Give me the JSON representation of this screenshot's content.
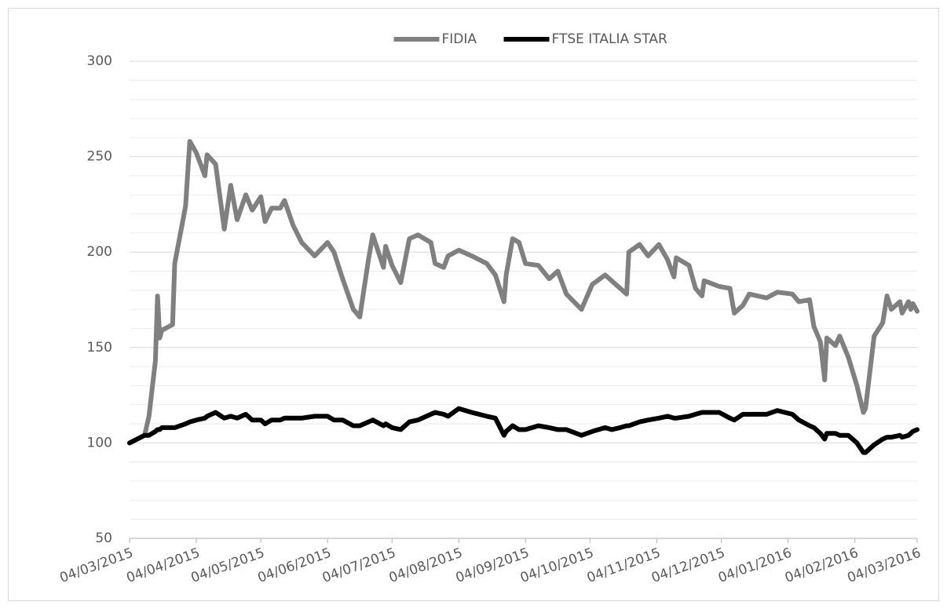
{
  "chart_data": {
    "type": "line",
    "x": [
      "04/03/2015",
      "11/03/2015",
      "13/03/2015",
      "16/03/2015",
      "17/03/2015",
      "18/03/2015",
      "19/03/2015",
      "24/03/2015",
      "25/03/2015",
      "30/03/2015",
      "01/04/2015",
      "04/04/2015",
      "08/04/2015",
      "09/04/2015",
      "13/04/2015",
      "17/04/2015",
      "20/04/2015",
      "23/04/2015",
      "27/04/2015",
      "30/04/2015",
      "04/05/2015",
      "06/05/2015",
      "09/05/2015",
      "13/05/2015",
      "15/05/2015",
      "19/05/2015",
      "23/05/2015",
      "29/05/2015",
      "04/06/2015",
      "07/06/2015",
      "11/06/2015",
      "16/06/2015",
      "19/06/2015",
      "23/06/2015",
      "25/06/2015",
      "30/06/2015",
      "01/07/2015",
      "04/07/2015",
      "08/07/2015",
      "12/07/2015",
      "16/07/2015",
      "22/07/2015",
      "24/07/2015",
      "28/07/2015",
      "30/07/2015",
      "04/08/2015",
      "10/08/2015",
      "17/08/2015",
      "21/08/2015",
      "25/08/2015",
      "26/08/2015",
      "29/08/2015",
      "01/09/2015",
      "04/09/2015",
      "10/09/2015",
      "15/09/2015",
      "19/09/2015",
      "23/09/2015",
      "30/09/2015",
      "05/10/2015",
      "11/10/2015",
      "14/10/2015",
      "18/10/2015",
      "21/10/2015",
      "22/10/2015",
      "27/10/2015",
      "31/10/2015",
      "05/11/2015",
      "09/11/2015",
      "12/11/2015",
      "13/11/2015",
      "19/11/2015",
      "22/11/2015",
      "25/11/2015",
      "26/11/2015",
      "03/12/2015",
      "08/12/2015",
      "10/12/2015",
      "14/12/2015",
      "17/12/2015",
      "25/12/2015",
      "30/12/2015",
      "06/01/2016",
      "09/01/2016",
      "14/01/2016",
      "16/01/2016",
      "19/01/2016",
      "21/01/2016",
      "22/01/2016",
      "26/01/2016",
      "28/01/2016",
      "01/02/2016",
      "05/02/2016",
      "08/02/2016",
      "09/02/2016",
      "13/02/2016",
      "17/02/2016",
      "19/02/2016",
      "21/02/2016",
      "25/02/2016",
      "26/02/2016",
      "29/02/2016",
      "01/03/2016",
      "02/03/2016",
      "04/03/2016"
    ],
    "series": [
      {
        "name": "FIDIA",
        "color": "#808080",
        "values": [
          100,
          104,
          114,
          143,
          177,
          155,
          159,
          162,
          194,
          224,
          258,
          252,
          240,
          251,
          246,
          212,
          235,
          217,
          230,
          222,
          229,
          216,
          223,
          223,
          227,
          214,
          205,
          198,
          205,
          200,
          186,
          170,
          166,
          196,
          209,
          192,
          203,
          193,
          184,
          207,
          209,
          205,
          194,
          192,
          198,
          201,
          198,
          194,
          188,
          174,
          188,
          207,
          205,
          194,
          193,
          186,
          190,
          178,
          170,
          183,
          188,
          185,
          181,
          178,
          200,
          204,
          198,
          204,
          196,
          187,
          197,
          193,
          181,
          177,
          185,
          182,
          181,
          168,
          172,
          178,
          176,
          179,
          178,
          174,
          175,
          161,
          153,
          133,
          155,
          151,
          156,
          145,
          130,
          116,
          118,
          156,
          163,
          177,
          170,
          174,
          168,
          174,
          170,
          173,
          169
        ]
      },
      {
        "name": "FTSE ITALIA STAR",
        "color": "#000000",
        "values": [
          100,
          104,
          104,
          106,
          107,
          107,
          108,
          108,
          108,
          110,
          111,
          112,
          113,
          114,
          116,
          113,
          114,
          113,
          115,
          112,
          112,
          110,
          112,
          112,
          113,
          113,
          113,
          114,
          114,
          112,
          112,
          109,
          109,
          111,
          112,
          109,
          110,
          108,
          107,
          111,
          112,
          115,
          116,
          115,
          114,
          118,
          116,
          114,
          113,
          104,
          106,
          109,
          107,
          107,
          109,
          108,
          107,
          107,
          104,
          106,
          108,
          107,
          108,
          109,
          109,
          111,
          112,
          113,
          114,
          113,
          113,
          114,
          115,
          116,
          116,
          116,
          113,
          112,
          115,
          115,
          115,
          117,
          115,
          112,
          109,
          108,
          105,
          102,
          105,
          105,
          104,
          104,
          100,
          95,
          95,
          99,
          102,
          103,
          103,
          104,
          103,
          104,
          105,
          106,
          107
        ]
      }
    ],
    "xlim": [
      "04/03/2015",
      "04/03/2016"
    ],
    "xticks": [
      "04/03/2015",
      "04/04/2015",
      "04/05/2015",
      "04/06/2015",
      "04/07/2015",
      "04/08/2015",
      "04/09/2015",
      "04/10/2015",
      "04/11/2015",
      "04/12/2015",
      "04/01/2016",
      "04/02/2016",
      "04/03/2016"
    ],
    "ylim": [
      50,
      300
    ],
    "yticks": [
      50,
      100,
      150,
      200,
      250,
      300
    ],
    "yminorticks": [
      60,
      70,
      80,
      90,
      110,
      120,
      130,
      140,
      160,
      170,
      180,
      190,
      210,
      220,
      230,
      240,
      260,
      270,
      280,
      290
    ],
    "grid": true,
    "legend": "top"
  }
}
